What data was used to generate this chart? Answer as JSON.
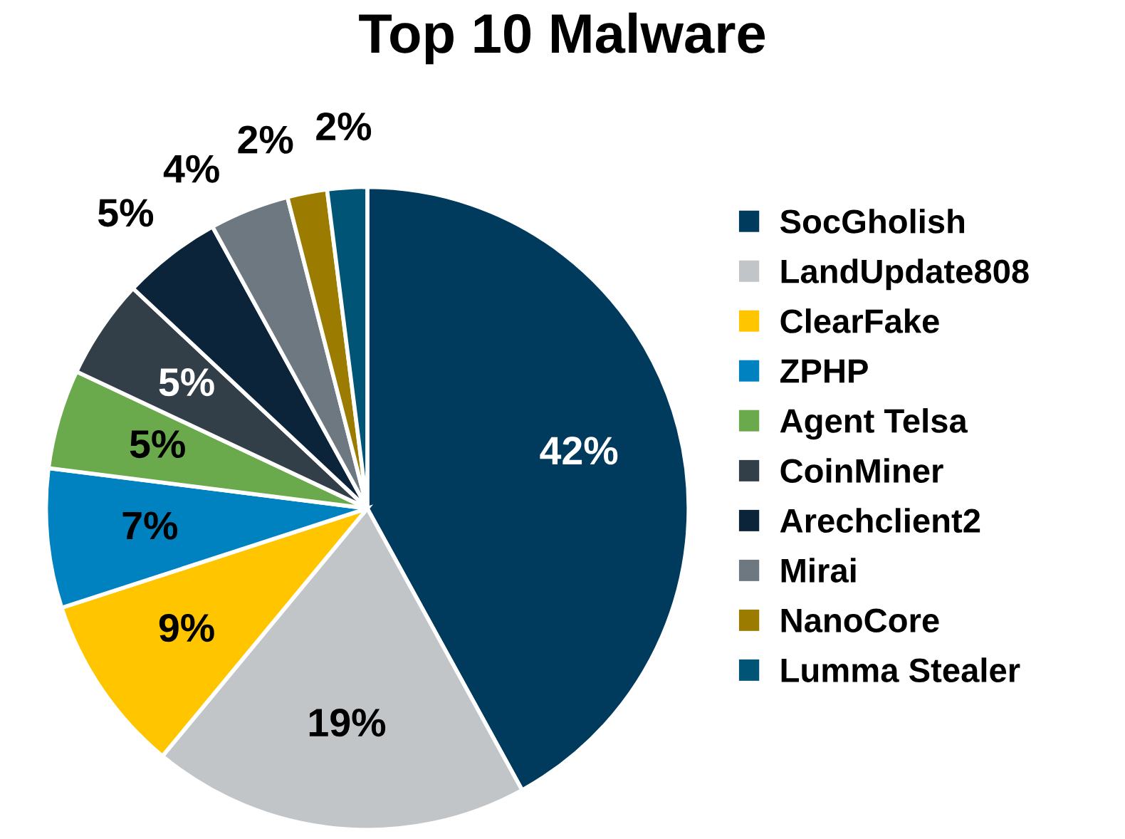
{
  "chart_data": {
    "type": "pie",
    "title": "Top 10 Malware",
    "categories": [
      "SocGholish",
      "LandUpdate808",
      "ClearFake",
      "ZPHP",
      "Agent Telsa",
      "CoinMiner",
      "Arechclient2",
      "Mirai",
      "NanoCore",
      "Lumma Stealer"
    ],
    "values": [
      42,
      19,
      9,
      7,
      5,
      5,
      5,
      4,
      2,
      2
    ],
    "colors": [
      "#003a5d",
      "#c1c5c8",
      "#ffc600",
      "#0082c0",
      "#6aaa4c",
      "#333f48",
      "#0b2439",
      "#6d7880",
      "#9b7c00",
      "#005576"
    ],
    "value_labels": [
      "42%",
      "19%",
      "9%",
      "7%",
      "5%",
      "5%",
      "5%",
      "4%",
      "2%",
      "2%"
    ],
    "legend": "right"
  }
}
